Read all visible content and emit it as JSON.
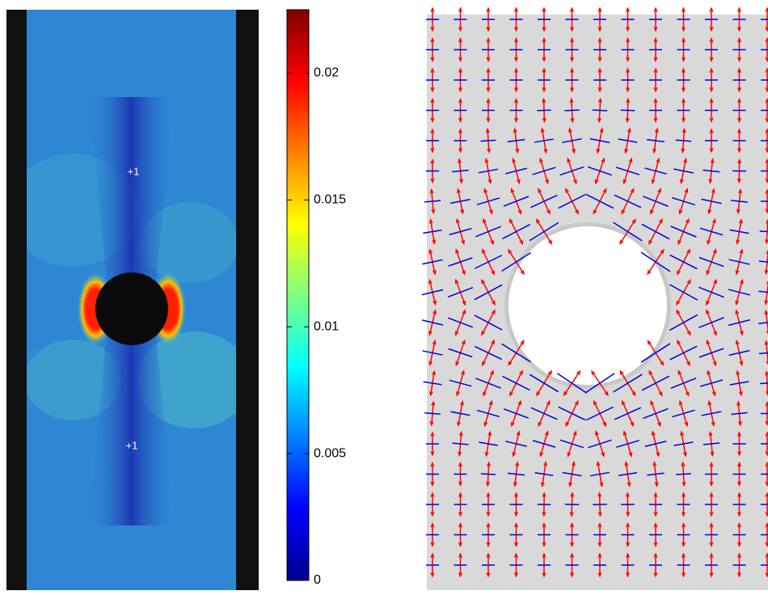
{
  "strain_map": {
    "annotations": [
      "+1",
      "+1"
    ]
  },
  "colorbar": {
    "lim": [
      0,
      0.0225
    ],
    "ticks": [
      0,
      0.005,
      0.01,
      0.015,
      0.02
    ]
  }
}
